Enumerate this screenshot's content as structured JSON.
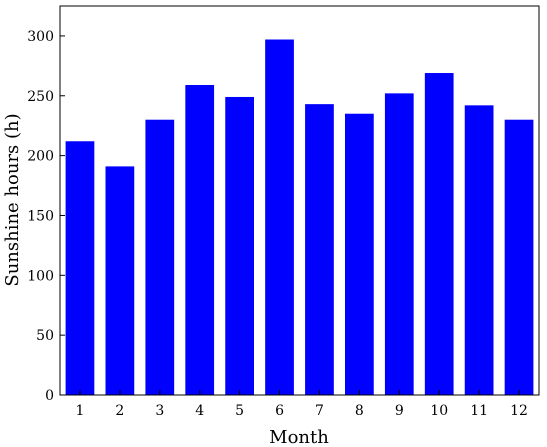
{
  "chart_data": {
    "type": "bar",
    "xlabel": "Month",
    "ylabel": "Sunshine hours (h)",
    "categories": [
      "1",
      "2",
      "3",
      "4",
      "5",
      "6",
      "7",
      "8",
      "9",
      "10",
      "11",
      "12"
    ],
    "values": [
      212,
      191,
      230,
      259,
      249,
      297,
      243,
      235,
      252,
      269,
      242,
      230
    ],
    "ylim": [
      0,
      325
    ],
    "yticks": [
      0,
      50,
      100,
      150,
      200,
      250,
      300
    ],
    "grid": false,
    "bar_color": "#0000ff"
  }
}
